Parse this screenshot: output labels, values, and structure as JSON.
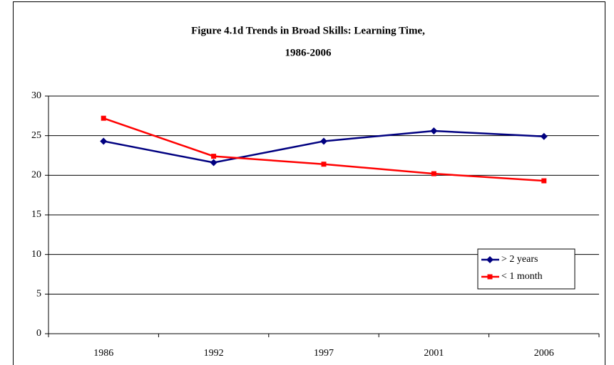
{
  "chart_data": {
    "type": "line",
    "title": [
      "Figure 4.1d Trends in Broad Skills: Learning Time,",
      "1986-2006"
    ],
    "categories": [
      "1986",
      "1992",
      "1997",
      "2001",
      "2006"
    ],
    "series": [
      {
        "name": "> 2 years",
        "color": "#000080",
        "marker": "diamond",
        "values": [
          24.3,
          21.6,
          24.3,
          25.6,
          24.9
        ]
      },
      {
        "name": "< 1 month",
        "color": "#ff0000",
        "marker": "square",
        "values": [
          27.2,
          22.4,
          21.4,
          20.2,
          19.3
        ]
      }
    ],
    "ylim": [
      0,
      30
    ],
    "yticks": [
      0,
      5,
      10,
      15,
      20,
      25,
      30
    ],
    "grid": true,
    "legend": "right"
  }
}
